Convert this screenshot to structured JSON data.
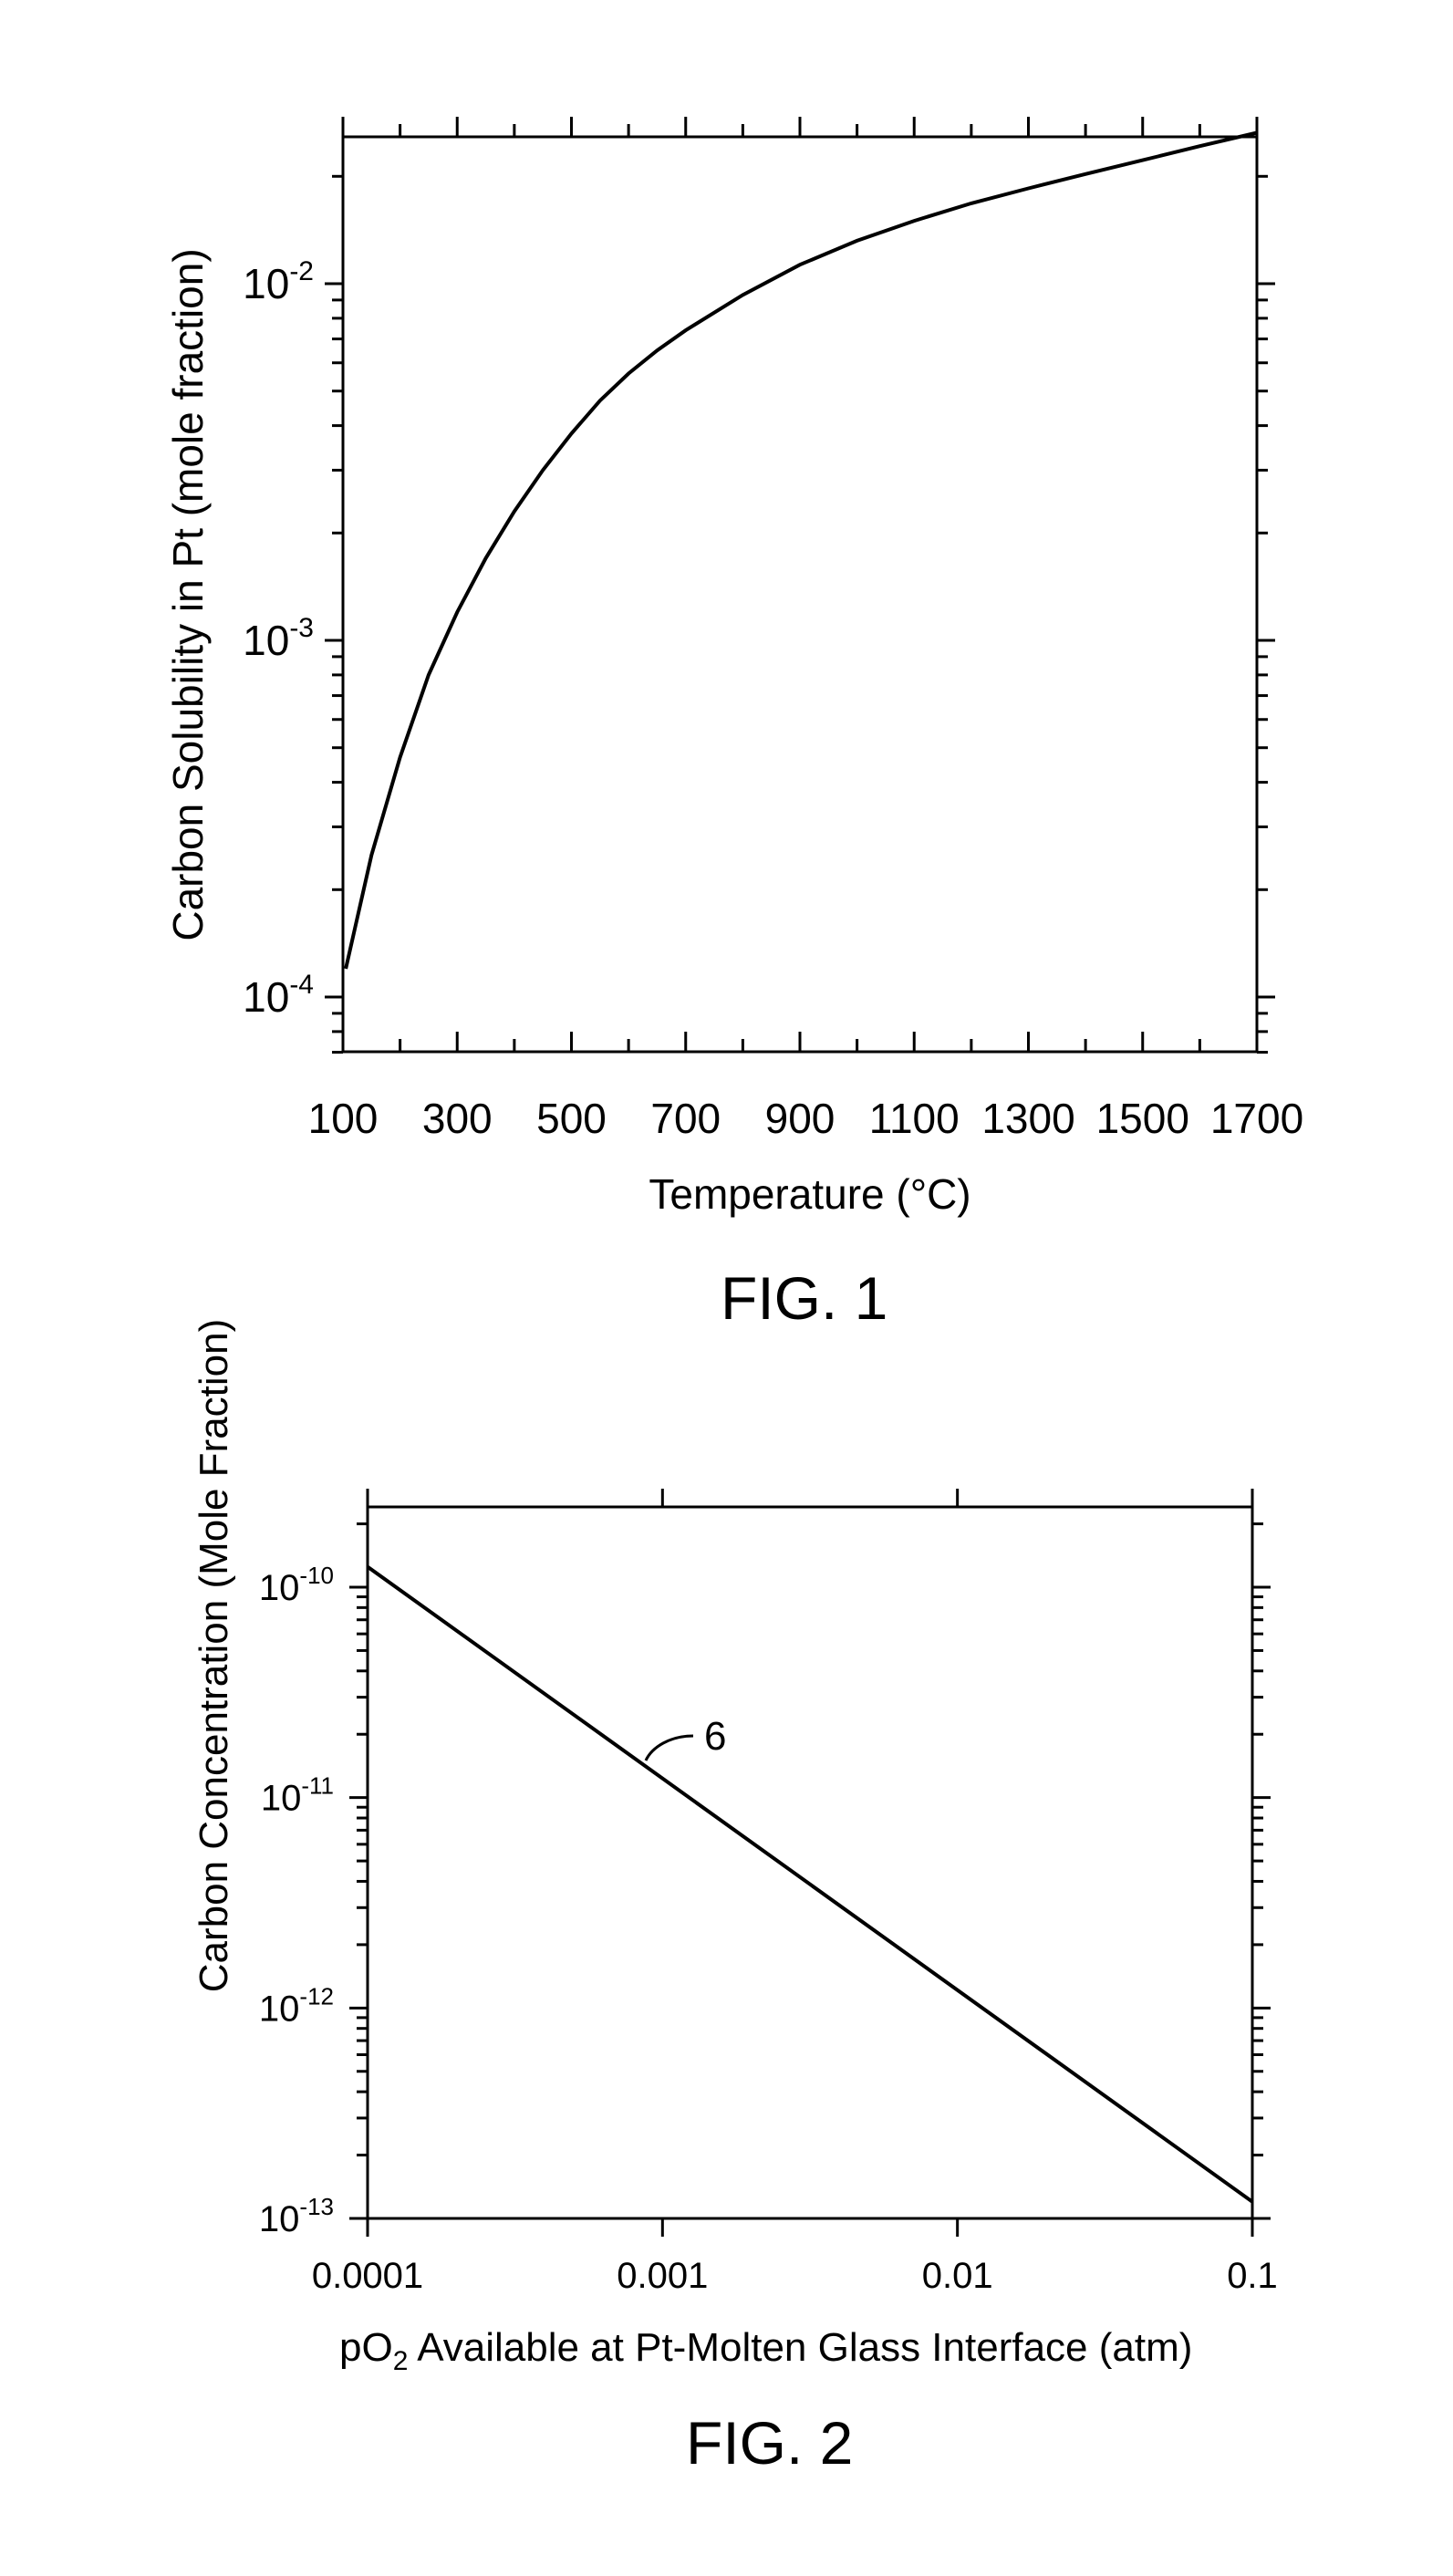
{
  "chart_data": [
    {
      "type": "line",
      "xlabel": "Temperature (°C)",
      "ylabel": "Carbon Solubility in Pt (mole fraction)",
      "x_scale": "linear",
      "y_scale": "log",
      "xlim": [
        100,
        1700
      ],
      "ylim": [
        7e-05,
        0.027
      ],
      "x_ticks": [
        "100",
        "300",
        "500",
        "700",
        "900",
        "1100",
        "1300",
        "1500",
        "1700"
      ],
      "y_ticks": [
        {
          "base": "10",
          "exp": "-4",
          "value": 0.0001
        },
        {
          "base": "10",
          "exp": "-3",
          "value": 0.001
        },
        {
          "base": "10",
          "exp": "-2",
          "value": 0.01
        }
      ],
      "series": [
        {
          "x": [
            105,
            150,
            200,
            250,
            300,
            350,
            400,
            450,
            500,
            550,
            600,
            650,
            700,
            800,
            900,
            1000,
            1100,
            1200,
            1300,
            1400,
            1500,
            1600,
            1700
          ],
          "y": [
            0.00012,
            0.00025,
            0.00047,
            0.0008,
            0.0012,
            0.0017,
            0.0023,
            0.003,
            0.0038,
            0.0047,
            0.0056,
            0.0065,
            0.0074,
            0.0093,
            0.0113,
            0.0132,
            0.015,
            0.0168,
            0.0185,
            0.0203,
            0.0222,
            0.0243,
            0.0265
          ]
        }
      ],
      "caption": "FIG. 1"
    },
    {
      "type": "line",
      "xlabel_prefix": "pO",
      "xlabel_sub": "2",
      "xlabel_suffix": " Available at Pt-Molten Glass Interface (atm)",
      "ylabel": "Carbon Concentration (Mole Fraction)",
      "x_scale": "log",
      "y_scale": "log",
      "xlim": [
        0.0001,
        0.1
      ],
      "ylim": [
        1e-13,
        2e-10
      ],
      "x_ticks": [
        "0.0001",
        "0.001",
        "0.01",
        "0.1"
      ],
      "y_ticks": [
        {
          "base": "10",
          "exp": "-13",
          "value": 1e-13
        },
        {
          "base": "10",
          "exp": "-12",
          "value": 1e-12
        },
        {
          "base": "10",
          "exp": "-11",
          "value": 1e-11
        },
        {
          "base": "10",
          "exp": "-10",
          "value": 1e-10
        }
      ],
      "series": [
        {
          "x": [
            0.0001,
            0.1
          ],
          "y": [
            1.25e-10,
            1.2e-13
          ]
        }
      ],
      "annotation": "6",
      "caption": "FIG. 2"
    }
  ]
}
